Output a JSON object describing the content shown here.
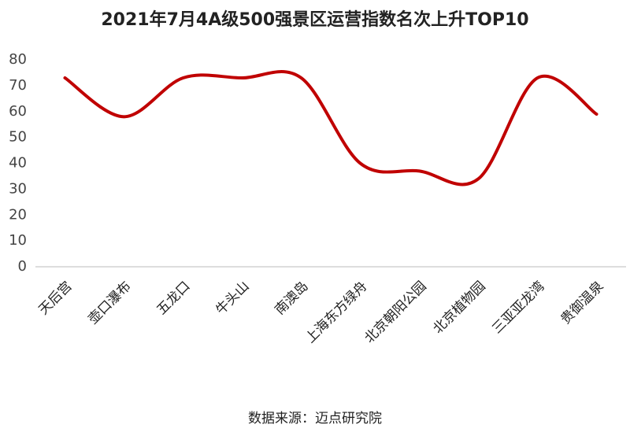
{
  "chart_data": {
    "type": "line",
    "title": "2021年7月4A级500强景区运营指数名次上升TOP10",
    "categories": [
      "天后宫",
      "壶口瀑布",
      "五龙口",
      "牛头山",
      "南澳岛",
      "上海东方绿舟",
      "北京朝阳公园",
      "北京植物园",
      "三亚亚龙湾",
      "贵御温泉"
    ],
    "values": [
      73,
      58,
      73,
      73,
      73,
      40,
      37,
      34,
      73,
      59
    ],
    "color": "#c00000",
    "smooth": true,
    "ylim": [
      0,
      80
    ],
    "yticks": [
      0,
      10,
      20,
      30,
      40,
      50,
      60,
      70,
      80
    ],
    "grid": false,
    "source": "数据来源：迈点研究院"
  }
}
